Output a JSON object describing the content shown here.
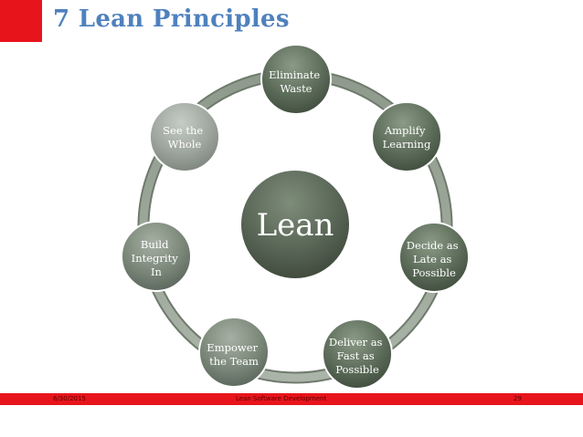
{
  "slide": {
    "title": "7 Lean Principles"
  },
  "diagram": {
    "hub": "Lean",
    "nodes": [
      {
        "lines": [
          "Eliminate",
          "Waste"
        ],
        "tone": "dark"
      },
      {
        "lines": [
          "Amplify",
          "Learning"
        ],
        "tone": "dark"
      },
      {
        "lines": [
          "Decide as",
          "Late as",
          "Possible"
        ],
        "tone": "dark"
      },
      {
        "lines": [
          "Deliver as",
          "Fast as",
          "Possible"
        ],
        "tone": "dark"
      },
      {
        "lines": [
          "Empower",
          "the Team"
        ],
        "tone": "mid"
      },
      {
        "lines": [
          "Build",
          "Integrity",
          "In"
        ],
        "tone": "mid"
      },
      {
        "lines": [
          "See the",
          "Whole"
        ],
        "tone": "light"
      }
    ]
  },
  "footer": {
    "date": "6/30/2015",
    "text": "Lean Software Development",
    "page": "29"
  },
  "colors": {
    "accent_red": "#e8141c",
    "title_blue": "#4f81bd",
    "node_dark": "#5f6f5c",
    "node_mid": "#7d8a7b",
    "node_light": "#a0a7a0",
    "ring": "#9aa69a"
  }
}
